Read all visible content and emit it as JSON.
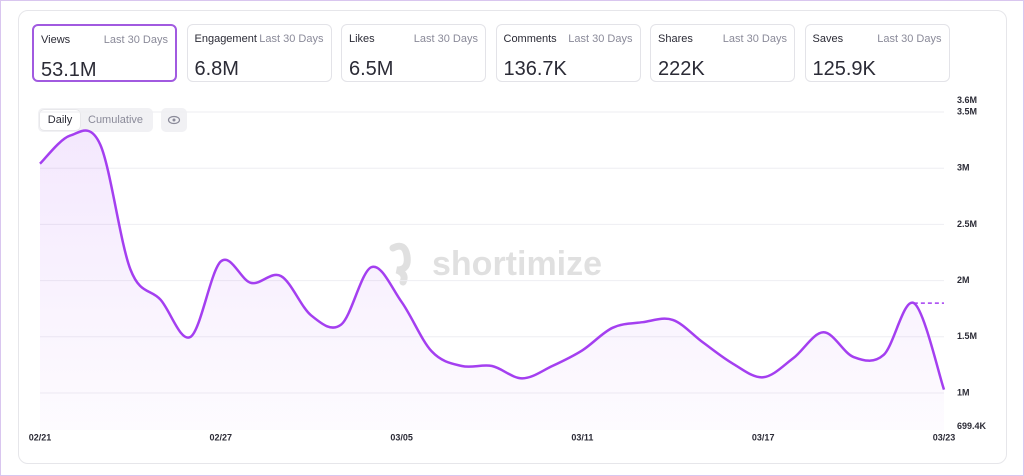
{
  "metrics": [
    {
      "label": "Views",
      "period": "Last 30 Days",
      "value": "53.1M"
    },
    {
      "label": "Engagement",
      "period": "Last 30 Days",
      "value": "6.8M"
    },
    {
      "label": "Likes",
      "period": "Last 30 Days",
      "value": "6.5M"
    },
    {
      "label": "Comments",
      "period": "Last 30 Days",
      "value": "136.7K"
    },
    {
      "label": "Shares",
      "period": "Last 30 Days",
      "value": "222K"
    },
    {
      "label": "Saves",
      "period": "Last 30 Days",
      "value": "125.9K"
    }
  ],
  "toggle": {
    "daily": "Daily",
    "cumulative": "Cumulative"
  },
  "watermark": "shortimize",
  "chart_data": {
    "type": "line",
    "color": "#a43ff0",
    "categories": [
      "02/21",
      null,
      null,
      null,
      null,
      null,
      "02/27",
      null,
      null,
      null,
      null,
      null,
      "03/05",
      null,
      null,
      null,
      null,
      null,
      "03/11",
      null,
      null,
      null,
      null,
      null,
      "03/17",
      null,
      null,
      null,
      null,
      null,
      "03/23"
    ],
    "values": [
      3040000,
      3290000,
      3210000,
      2100000,
      1830000,
      1500000,
      2170000,
      1980000,
      2040000,
      1690000,
      1610000,
      2120000,
      1810000,
      1370000,
      1240000,
      1240000,
      1130000,
      1240000,
      1380000,
      1580000,
      1630000,
      1650000,
      1450000,
      1260000,
      1140000,
      1310000,
      1540000,
      1320000,
      1340000,
      1800000,
      1030000
    ],
    "ylim": [
      699400,
      3600000
    ],
    "yticks": [
      {
        "value": 699400,
        "label": "699.4K"
      },
      {
        "value": 1000000,
        "label": "1M"
      },
      {
        "value": 1500000,
        "label": "1.5M"
      },
      {
        "value": 2000000,
        "label": "2M"
      },
      {
        "value": 2500000,
        "label": "2.5M"
      },
      {
        "value": 3000000,
        "label": "3M"
      },
      {
        "value": 3500000,
        "label": "3.5M"
      },
      {
        "value": 3600000,
        "label": "3.6M"
      }
    ],
    "grid": true
  }
}
